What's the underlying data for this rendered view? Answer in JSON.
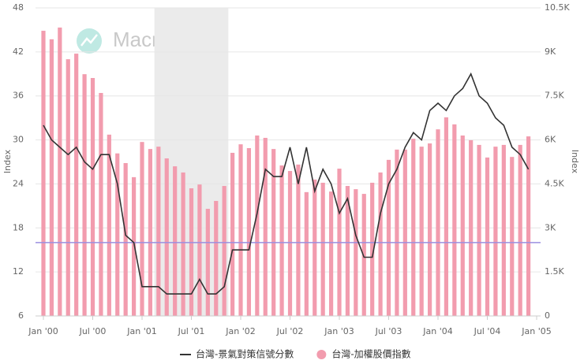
{
  "chart_data": {
    "type": "bar_line_dual",
    "watermark": "MacroMicro",
    "y_label": "Index",
    "y2_label": "Index",
    "categories": [
      "Jan '00",
      null,
      null,
      null,
      null,
      null,
      "Jul '00",
      null,
      null,
      null,
      null,
      null,
      "Jan '01",
      null,
      null,
      null,
      null,
      null,
      "Jul '01",
      null,
      null,
      null,
      null,
      null,
      "Jan '02",
      null,
      null,
      null,
      null,
      null,
      "Jul '02",
      null,
      null,
      null,
      null,
      null,
      "Jan '03",
      null,
      null,
      null,
      null,
      null,
      "Jul '03",
      null,
      null,
      null,
      null,
      null,
      "Jan '04",
      null,
      null,
      null,
      null,
      null,
      "Jul '04",
      null,
      null,
      null,
      null,
      null,
      "Jan '05"
    ],
    "series": [
      {
        "name": "台灣-景氣對策信號分數",
        "kind": "line",
        "axis": "y",
        "color": "#333333",
        "values": [
          32,
          30,
          29,
          28,
          29,
          27,
          26,
          28,
          28,
          24,
          17,
          16,
          10,
          10,
          10,
          9,
          9,
          9,
          9,
          11,
          9,
          9,
          10,
          15,
          15,
          15,
          20,
          26,
          25,
          25,
          29,
          24,
          29,
          23,
          26,
          24,
          20,
          22,
          17,
          14,
          14,
          20,
          24,
          26,
          29,
          31,
          30,
          34,
          35,
          34,
          36,
          37,
          39,
          36,
          35,
          33,
          32,
          29,
          28,
          26,
          null
        ]
      },
      {
        "name": "台灣-加權股價指數",
        "kind": "bar",
        "axis": "y2",
        "color": "#f29cae",
        "values": [
          9720,
          9430,
          9830,
          8750,
          8940,
          8240,
          8110,
          7600,
          6180,
          5540,
          5210,
          4730,
          5930,
          5690,
          5770,
          5370,
          5100,
          4890,
          4350,
          4480,
          3650,
          3920,
          4430,
          5560,
          5850,
          5720,
          6150,
          6070,
          5690,
          5130,
          4940,
          5160,
          4220,
          4650,
          4540,
          4240,
          5020,
          4430,
          4320,
          4160,
          4540,
          4890,
          5320,
          5670,
          5670,
          6040,
          5770,
          5880,
          6360,
          6770,
          6530,
          6150,
          5990,
          5830,
          5400,
          5770,
          5830,
          5420,
          5830,
          6120,
          null
        ]
      }
    ],
    "ylim": [
      6,
      48
    ],
    "yticks": [
      6,
      12,
      18,
      24,
      30,
      36,
      42,
      48
    ],
    "y2lim": [
      0,
      10500
    ],
    "y2ticks": [
      0,
      {
        "value": 1500,
        "label": "1.5K"
      },
      {
        "value": 3000,
        "label": "3K"
      },
      {
        "value": 4500,
        "label": "4.5K"
      },
      {
        "value": 6000,
        "label": "6K"
      },
      {
        "value": 7500,
        "label": "7.5K"
      },
      {
        "value": 9000,
        "label": "9K"
      },
      {
        "value": 10500,
        "label": "10.5K"
      }
    ],
    "grid": true,
    "shaded_range": [
      14,
      23
    ],
    "reference_line": {
      "value": 16,
      "color": "#9b8fe0"
    },
    "legend": "bottom"
  }
}
